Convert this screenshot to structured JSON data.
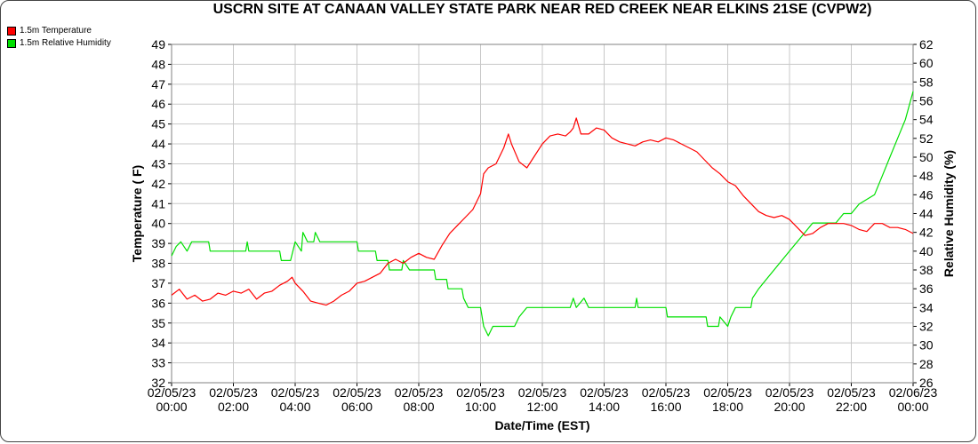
{
  "chart_data": {
    "type": "line",
    "title": "USCRN SITE AT CANAAN VALLEY STATE PARK NEAR RED CREEK NEAR ELKINS 21SE (CVPW2)",
    "xlabel": "Date/Time (EST)",
    "ylabel": "Temperature ( F)",
    "y2label": "Relative Humidity (%)",
    "xlim": [
      0,
      24
    ],
    "ylim": [
      32,
      49
    ],
    "y2lim": [
      26,
      62
    ],
    "x_tick_labels": [
      {
        "date": "02/05/23",
        "time": "00:00"
      },
      {
        "date": "02/05/23",
        "time": "02:00"
      },
      {
        "date": "02/05/23",
        "time": "04:00"
      },
      {
        "date": "02/05/23",
        "time": "06:00"
      },
      {
        "date": "02/05/23",
        "time": "08:00"
      },
      {
        "date": "02/05/23",
        "time": "10:00"
      },
      {
        "date": "02/05/23",
        "time": "12:00"
      },
      {
        "date": "02/05/23",
        "time": "14:00"
      },
      {
        "date": "02/05/23",
        "time": "16:00"
      },
      {
        "date": "02/05/23",
        "time": "18:00"
      },
      {
        "date": "02/05/23",
        "time": "20:00"
      },
      {
        "date": "02/05/23",
        "time": "22:00"
      },
      {
        "date": "02/06/23",
        "time": "00:00"
      }
    ],
    "y_ticks": [
      32,
      33,
      34,
      35,
      36,
      37,
      38,
      39,
      40,
      41,
      42,
      43,
      44,
      45,
      46,
      47,
      48,
      49
    ],
    "y2_ticks": [
      26,
      28,
      30,
      32,
      34,
      36,
      38,
      40,
      42,
      44,
      46,
      48,
      50,
      52,
      54,
      56,
      58,
      60,
      62
    ],
    "grid": true,
    "legend": "top-left",
    "series": [
      {
        "name": "1.5m Temperature",
        "axis": "left",
        "color": "#ff0000",
        "points": [
          [
            0.0,
            36.4
          ],
          [
            0.25,
            36.7
          ],
          [
            0.5,
            36.2
          ],
          [
            0.75,
            36.4
          ],
          [
            1.0,
            36.1
          ],
          [
            1.25,
            36.2
          ],
          [
            1.5,
            36.5
          ],
          [
            1.75,
            36.4
          ],
          [
            2.0,
            36.6
          ],
          [
            2.25,
            36.5
          ],
          [
            2.5,
            36.7
          ],
          [
            2.75,
            36.2
          ],
          [
            3.0,
            36.5
          ],
          [
            3.25,
            36.6
          ],
          [
            3.5,
            36.9
          ],
          [
            3.75,
            37.1
          ],
          [
            3.9,
            37.3
          ],
          [
            4.0,
            37.0
          ],
          [
            4.25,
            36.6
          ],
          [
            4.5,
            36.1
          ],
          [
            4.75,
            36.0
          ],
          [
            5.0,
            35.9
          ],
          [
            5.25,
            36.1
          ],
          [
            5.5,
            36.4
          ],
          [
            5.75,
            36.6
          ],
          [
            6.0,
            37.0
          ],
          [
            6.25,
            37.1
          ],
          [
            6.5,
            37.3
          ],
          [
            6.75,
            37.5
          ],
          [
            7.0,
            38.0
          ],
          [
            7.25,
            38.2
          ],
          [
            7.5,
            38.0
          ],
          [
            7.75,
            38.3
          ],
          [
            8.0,
            38.5
          ],
          [
            8.25,
            38.3
          ],
          [
            8.5,
            38.2
          ],
          [
            8.75,
            38.9
          ],
          [
            9.0,
            39.5
          ],
          [
            9.25,
            39.9
          ],
          [
            9.5,
            40.3
          ],
          [
            9.75,
            40.7
          ],
          [
            10.0,
            41.5
          ],
          [
            10.1,
            42.5
          ],
          [
            10.25,
            42.8
          ],
          [
            10.5,
            43.0
          ],
          [
            10.75,
            43.8
          ],
          [
            10.9,
            44.5
          ],
          [
            11.0,
            44.0
          ],
          [
            11.25,
            43.1
          ],
          [
            11.5,
            42.8
          ],
          [
            11.75,
            43.4
          ],
          [
            12.0,
            44.0
          ],
          [
            12.25,
            44.4
          ],
          [
            12.5,
            44.5
          ],
          [
            12.75,
            44.4
          ],
          [
            12.9,
            44.6
          ],
          [
            13.0,
            44.8
          ],
          [
            13.1,
            45.3
          ],
          [
            13.25,
            44.5
          ],
          [
            13.5,
            44.5
          ],
          [
            13.75,
            44.8
          ],
          [
            14.0,
            44.7
          ],
          [
            14.25,
            44.3
          ],
          [
            14.5,
            44.1
          ],
          [
            14.75,
            44.0
          ],
          [
            15.0,
            43.9
          ],
          [
            15.25,
            44.1
          ],
          [
            15.5,
            44.2
          ],
          [
            15.75,
            44.1
          ],
          [
            16.0,
            44.3
          ],
          [
            16.25,
            44.2
          ],
          [
            16.5,
            44.0
          ],
          [
            16.75,
            43.8
          ],
          [
            17.0,
            43.6
          ],
          [
            17.25,
            43.2
          ],
          [
            17.5,
            42.8
          ],
          [
            17.75,
            42.5
          ],
          [
            18.0,
            42.1
          ],
          [
            18.25,
            41.9
          ],
          [
            18.5,
            41.4
          ],
          [
            18.75,
            41.0
          ],
          [
            19.0,
            40.6
          ],
          [
            19.25,
            40.4
          ],
          [
            19.5,
            40.3
          ],
          [
            19.75,
            40.4
          ],
          [
            20.0,
            40.2
          ],
          [
            20.25,
            39.8
          ],
          [
            20.5,
            39.4
          ],
          [
            20.75,
            39.5
          ],
          [
            21.0,
            39.8
          ],
          [
            21.25,
            40.0
          ],
          [
            21.5,
            40.0
          ],
          [
            21.75,
            40.0
          ],
          [
            22.0,
            39.9
          ],
          [
            22.25,
            39.7
          ],
          [
            22.5,
            39.6
          ],
          [
            22.75,
            40.0
          ],
          [
            23.0,
            40.0
          ],
          [
            23.25,
            39.8
          ],
          [
            23.5,
            39.8
          ],
          [
            23.75,
            39.7
          ],
          [
            24.0,
            39.5
          ]
        ]
      },
      {
        "name": "1.5m Relative Humidity",
        "axis": "right",
        "color": "#00e000",
        "points": [
          [
            0.0,
            39.5
          ],
          [
            0.15,
            40.5
          ],
          [
            0.3,
            41
          ],
          [
            0.5,
            40
          ],
          [
            0.65,
            41
          ],
          [
            0.8,
            41
          ],
          [
            1.0,
            41
          ],
          [
            1.2,
            41
          ],
          [
            1.25,
            40
          ],
          [
            2.4,
            40
          ],
          [
            2.45,
            41
          ],
          [
            2.5,
            40
          ],
          [
            3.5,
            40
          ],
          [
            3.55,
            39
          ],
          [
            3.85,
            39
          ],
          [
            4.0,
            41
          ],
          [
            4.2,
            40
          ],
          [
            4.25,
            42
          ],
          [
            4.4,
            41
          ],
          [
            4.6,
            41
          ],
          [
            4.65,
            42
          ],
          [
            4.8,
            41
          ],
          [
            6.0,
            41
          ],
          [
            6.05,
            40
          ],
          [
            6.6,
            40
          ],
          [
            6.65,
            39
          ],
          [
            7.0,
            39
          ],
          [
            7.05,
            38
          ],
          [
            7.45,
            38
          ],
          [
            7.5,
            39
          ],
          [
            7.7,
            38
          ],
          [
            8.5,
            38
          ],
          [
            8.55,
            37
          ],
          [
            8.9,
            37
          ],
          [
            8.95,
            36
          ],
          [
            9.4,
            36
          ],
          [
            9.45,
            35
          ],
          [
            9.6,
            34
          ],
          [
            10.0,
            34
          ],
          [
            10.1,
            32
          ],
          [
            10.25,
            31
          ],
          [
            10.4,
            32
          ],
          [
            11.1,
            32
          ],
          [
            11.25,
            33
          ],
          [
            11.5,
            34
          ],
          [
            12.2,
            34
          ],
          [
            12.25,
            34
          ],
          [
            12.9,
            34
          ],
          [
            13.0,
            35
          ],
          [
            13.1,
            34
          ],
          [
            13.35,
            35
          ],
          [
            13.5,
            34
          ],
          [
            15.0,
            34
          ],
          [
            15.05,
            35
          ],
          [
            15.1,
            34
          ],
          [
            16.0,
            34
          ],
          [
            16.05,
            33
          ],
          [
            17.3,
            33
          ],
          [
            17.35,
            32
          ],
          [
            17.7,
            32
          ],
          [
            17.75,
            33
          ],
          [
            18.0,
            32
          ],
          [
            18.1,
            33
          ],
          [
            18.25,
            34
          ],
          [
            18.75,
            34
          ],
          [
            18.8,
            35
          ],
          [
            19.0,
            36
          ],
          [
            19.25,
            37
          ],
          [
            19.5,
            38
          ],
          [
            19.75,
            39
          ],
          [
            20.0,
            40
          ],
          [
            20.25,
            41
          ],
          [
            20.5,
            42
          ],
          [
            20.75,
            43
          ],
          [
            21.0,
            43
          ],
          [
            21.5,
            43
          ],
          [
            21.75,
            44
          ],
          [
            22.0,
            44
          ],
          [
            22.25,
            45
          ],
          [
            22.75,
            46
          ],
          [
            23.0,
            48
          ],
          [
            23.25,
            50
          ],
          [
            23.5,
            52
          ],
          [
            23.75,
            54
          ],
          [
            24.0,
            57
          ]
        ]
      }
    ]
  }
}
